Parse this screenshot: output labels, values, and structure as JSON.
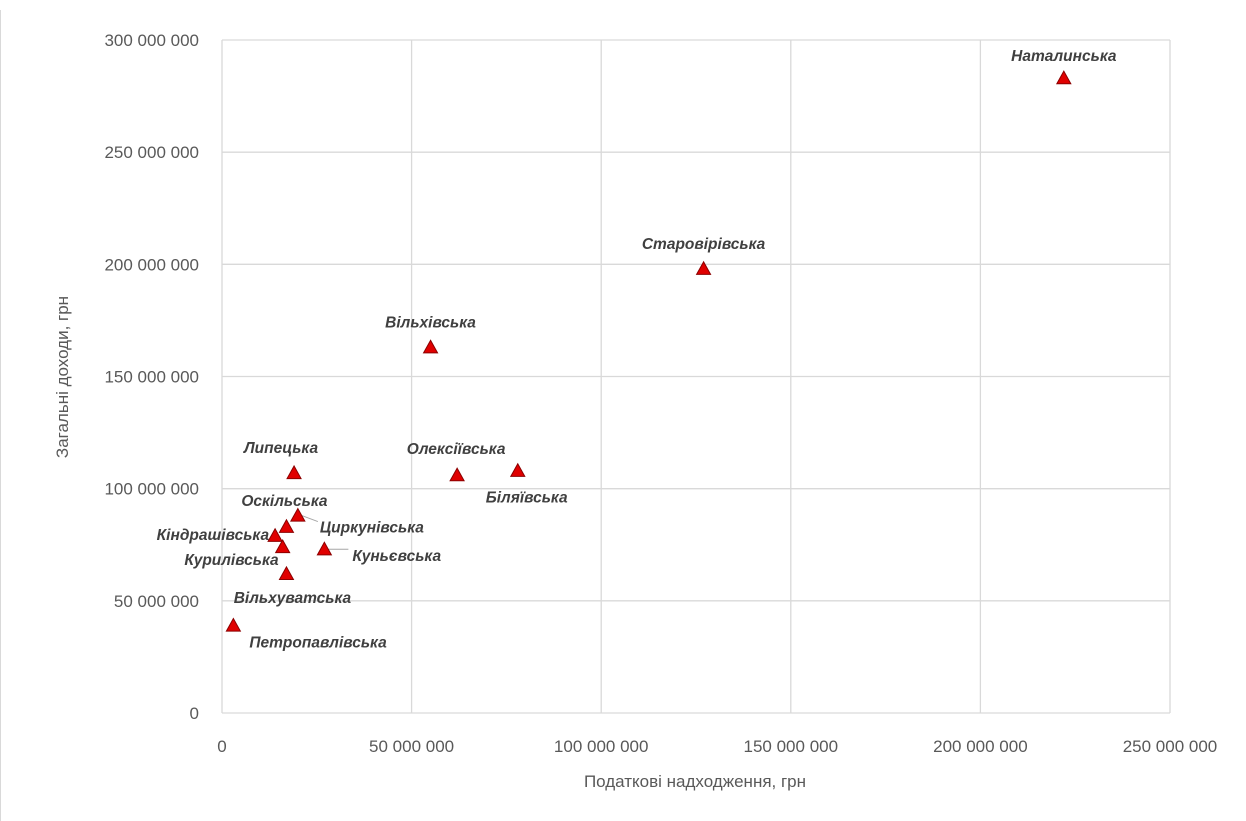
{
  "chart_data": {
    "type": "scatter",
    "title": "",
    "xlabel": "Податкові надходження, грн",
    "ylabel": "Загальні доходи, грн",
    "xlim": [
      0,
      250000000
    ],
    "ylim": [
      0,
      300000000
    ],
    "x_ticks": [
      0,
      50000000,
      100000000,
      150000000,
      200000000,
      250000000
    ],
    "y_ticks": [
      0,
      50000000,
      100000000,
      150000000,
      200000000,
      250000000,
      300000000
    ],
    "x_tick_labels": [
      "0",
      "50 000 000",
      "100 000 000",
      "150 000 000",
      "200 000 000",
      "250 000 000"
    ],
    "y_tick_labels": [
      "0",
      "50 000 000",
      "100 000 000",
      "150 000 000",
      "200 000 000",
      "250 000 000",
      "300 000 000"
    ],
    "grid": true,
    "legend": "none",
    "marker": "triangle",
    "marker_color": "#e00000",
    "points": [
      {
        "label": "Наталинська",
        "x": 222000000,
        "y": 283000000
      },
      {
        "label": "Старовірівська",
        "x": 127000000,
        "y": 198000000
      },
      {
        "label": "Вільхівська",
        "x": 55000000,
        "y": 163000000
      },
      {
        "label": "Липецька",
        "x": 19000000,
        "y": 107000000
      },
      {
        "label": "Олексіївська",
        "x": 62000000,
        "y": 106000000
      },
      {
        "label": "Біляївська",
        "x": 78000000,
        "y": 108000000
      },
      {
        "label": "Оскільська",
        "x": 17000000,
        "y": 83000000
      },
      {
        "label": "Циркунівська",
        "x": 20000000,
        "y": 88000000
      },
      {
        "label": "Кіндрашівська",
        "x": 14000000,
        "y": 79000000
      },
      {
        "label": "Курилівська",
        "x": 16000000,
        "y": 74000000
      },
      {
        "label": "Куньєвська",
        "x": 27000000,
        "y": 73000000
      },
      {
        "label": "Вільхуватська",
        "x": 17000000,
        "y": 62000000
      },
      {
        "label": "Петропавлівська",
        "x": 3000000,
        "y": 39000000
      }
    ]
  }
}
